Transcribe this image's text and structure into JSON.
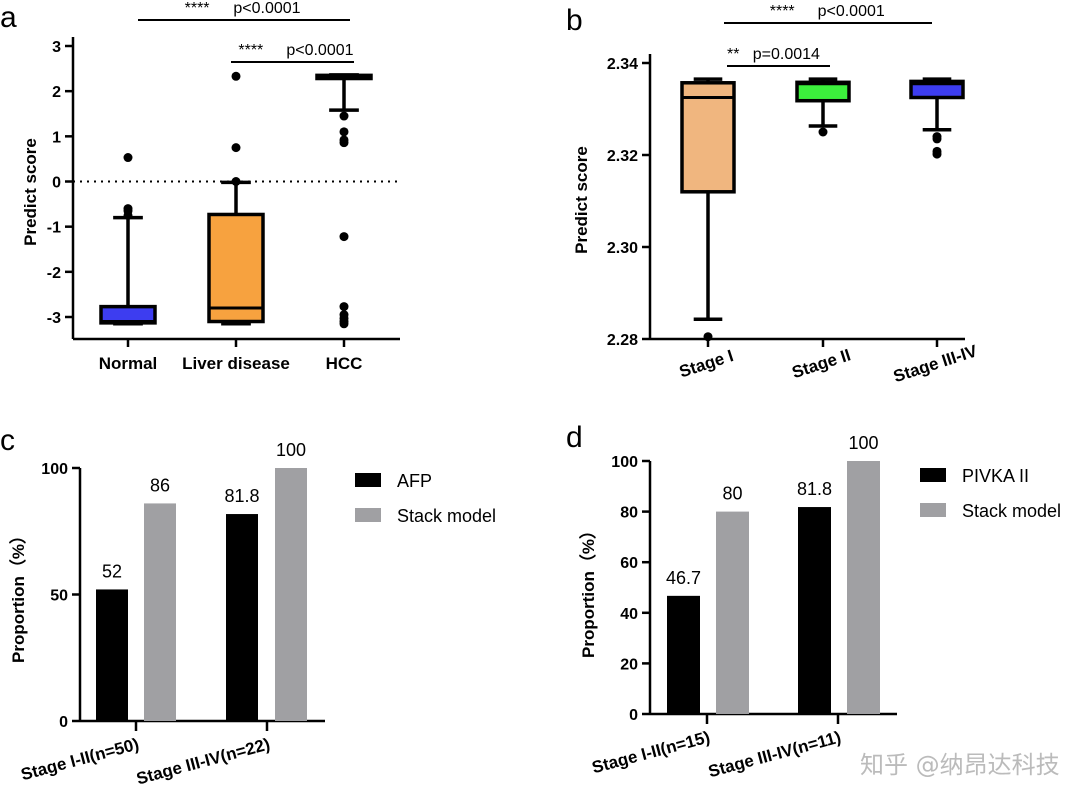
{
  "chart_data": [
    {
      "panel": "a",
      "type": "box",
      "ylabel": "Predict score",
      "ylim": [
        -3.5,
        3
      ],
      "yticks": [
        3,
        2,
        1,
        0,
        -1,
        -2,
        -3
      ],
      "reference_line": {
        "y": 0,
        "style": "dotted"
      },
      "groups": [
        {
          "name": "Normal",
          "color": "#3d3df0",
          "q1": -3.13,
          "median": -3.1,
          "q3": -2.77,
          "whisker_low": -3.15,
          "whisker_high": -0.8,
          "outliers": [
            0.53,
            -0.6,
            -0.65,
            -0.75
          ]
        },
        {
          "name": "Liver disease",
          "color": "#f7a23f",
          "q1": -3.1,
          "median": -2.8,
          "q3": -0.73,
          "whisker_low": -3.15,
          "whisker_high": -0.02,
          "outliers": [
            2.33,
            0.75,
            0.0
          ]
        },
        {
          "name": "HCC",
          "color": "#000000",
          "q1": 2.28,
          "median": 2.33,
          "q3": 2.35,
          "whisker_low": 1.58,
          "whisker_high": 2.36,
          "outliers": [
            1.45,
            1.1,
            0.92,
            0.86,
            -1.22,
            -2.77,
            -2.95,
            -3.03,
            -3.1,
            -3.15
          ]
        }
      ],
      "comparisons": [
        {
          "from": 0,
          "to": 2,
          "stars": "****",
          "p": "p<0.0001"
        },
        {
          "from": 1,
          "to": 2,
          "stars": "****",
          "p": "p<0.0001"
        }
      ]
    },
    {
      "panel": "b",
      "type": "box",
      "ylabel": "Predict score",
      "ylim": [
        2.28,
        2.34
      ],
      "yticks": [
        "2.34",
        "2.32",
        "2.30",
        "2.28"
      ],
      "groups": [
        {
          "name": "Stage I",
          "color": "#f0b67f",
          "q1": 2.312,
          "median": 2.3325,
          "q3": 2.3357,
          "whisker_low": 2.2843,
          "whisker_high": 2.3365,
          "outliers": [
            2.2805
          ]
        },
        {
          "name": "Stage II",
          "color": "#3cf03c",
          "q1": 2.3318,
          "median": 2.3355,
          "q3": 2.3358,
          "whisker_low": 2.3263,
          "whisker_high": 2.3365,
          "outliers": [
            2.325
          ]
        },
        {
          "name": "Stage III-IV",
          "color": "#3d3df0",
          "q1": 2.3325,
          "median": 2.3355,
          "q3": 2.336,
          "whisker_low": 2.3255,
          "whisker_high": 2.3365,
          "outliers": [
            2.324,
            2.3235,
            2.3208,
            2.3202
          ]
        }
      ],
      "comparisons": [
        {
          "from": 0,
          "to": 2,
          "stars": "****",
          "p": "p<0.0001"
        },
        {
          "from": 0,
          "to": 1,
          "stars": "**",
          "p": "p=0.0014"
        }
      ]
    },
    {
      "panel": "c",
      "type": "bar",
      "ylabel": "Proportion（%）",
      "ylim": [
        0,
        100
      ],
      "yticks": [
        0,
        50,
        100
      ],
      "categories": [
        "Stage I-II(n=50)",
        "Stage III-IV(n=22)"
      ],
      "series": [
        {
          "name": "AFP",
          "color": "#000000",
          "values": [
            52,
            81.8
          ],
          "labels": [
            "52",
            "81.8"
          ]
        },
        {
          "name": "Stack model",
          "color": "#a0a0a3",
          "values": [
            86,
            100
          ],
          "labels": [
            "86",
            "100"
          ]
        }
      ],
      "legend": "right"
    },
    {
      "panel": "d",
      "type": "bar",
      "ylabel": "Proportion（%）",
      "ylim": [
        0,
        100
      ],
      "yticks": [
        0,
        20,
        40,
        60,
        80,
        100
      ],
      "categories": [
        "Stage I-II(n=15)",
        "Stage III-IV(n=11)"
      ],
      "series": [
        {
          "name": "PIVKA II",
          "color": "#000000",
          "values": [
            46.7,
            81.8
          ],
          "labels": [
            "46.7",
            "81.8"
          ]
        },
        {
          "name": "Stack model",
          "color": "#a0a0a3",
          "values": [
            80,
            100
          ],
          "labels": [
            "80",
            "100"
          ]
        }
      ],
      "legend": "right"
    }
  ],
  "watermark": "知乎 @纳昂达科技"
}
